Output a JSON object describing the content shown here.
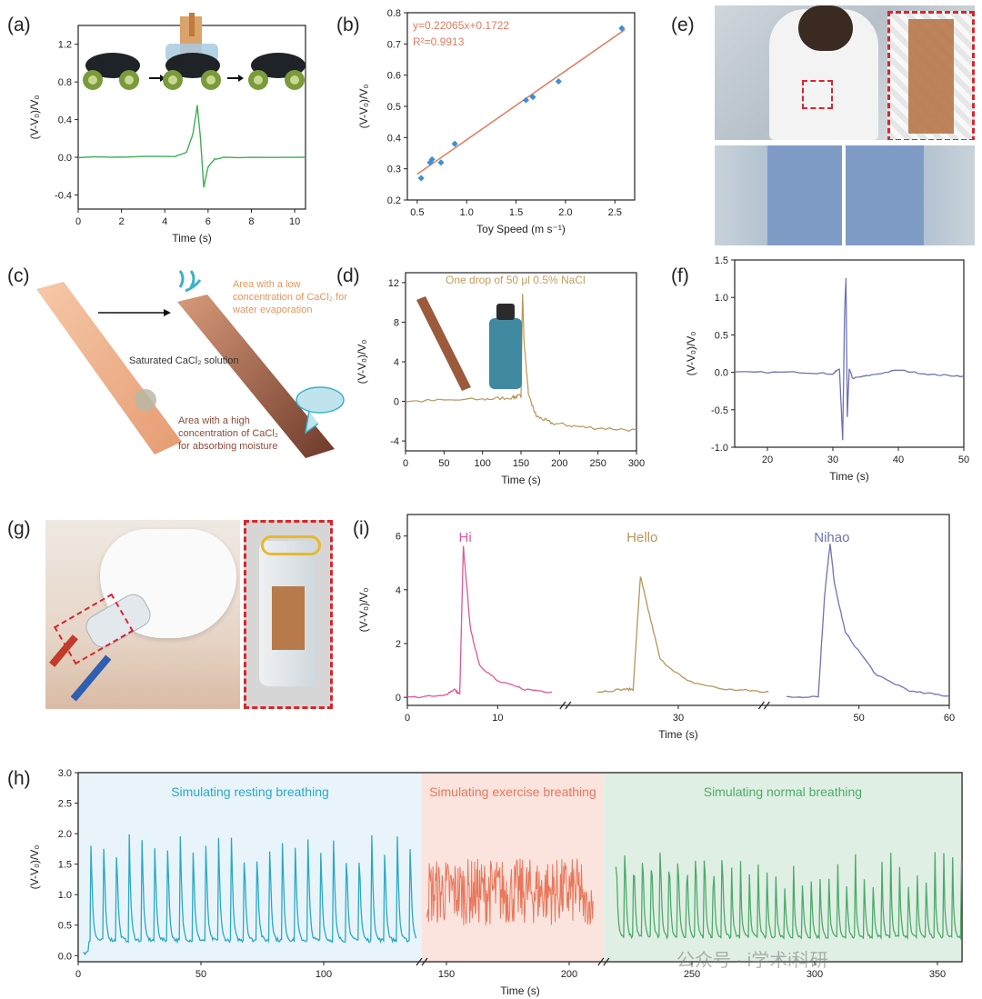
{
  "panels": {
    "a": "(a)",
    "b": "(b)",
    "c": "(c)",
    "d": "(d)",
    "e": "(e)",
    "f": "(f)",
    "g": "(g)",
    "h": "(h)",
    "i": "(i)"
  },
  "diagram_c": {
    "saturated": "Saturated CaCl₂ solution",
    "low_area": "Area with a low concentration of CaCl₂ for water evaporation",
    "high_area": "Area with a high concentration of CaCl₂ for absorbing moisture"
  },
  "watermark": "公众号 · i学术i科研",
  "colors": {
    "green": "#3fae55",
    "orange": "#e07a5f",
    "gold": "#b8955a",
    "purple": "#6f72b8",
    "pink": "#e0569a",
    "cyan": "#2aa9c7",
    "salmon": "#e8785b",
    "breath_green": "#4dab6a"
  },
  "chart_data": [
    {
      "id": "a",
      "type": "line",
      "xlabel": "Time (s)",
      "ylabel": "(V-V₀)/V₀",
      "xlim": [
        0,
        10.5
      ],
      "ylim": [
        -0.55,
        1.4
      ],
      "xticks": [
        0,
        2,
        4,
        6,
        8,
        10
      ],
      "yticks": [
        -0.4,
        0.0,
        0.4,
        0.8,
        1.2
      ],
      "ytick_labels": [
        "-0.4",
        "0.0",
        "0.4",
        "0.8",
        "1.2"
      ],
      "series": [
        {
          "color": "#3fae55",
          "x": [
            0,
            4.5,
            5.0,
            5.3,
            5.5,
            5.65,
            5.8,
            6.0,
            6.3,
            6.8,
            10.5
          ],
          "y": [
            0,
            0.01,
            0.05,
            0.25,
            0.55,
            0.2,
            -0.32,
            -0.1,
            -0.02,
            0,
            0
          ]
        }
      ]
    },
    {
      "id": "b",
      "type": "scatter",
      "xlabel": "Toy Speed (m s⁻¹)",
      "ylabel": "(V-V₀)/V₀",
      "xlim": [
        0.4,
        2.7
      ],
      "ylim": [
        0.2,
        0.8
      ],
      "xticks": [
        0.5,
        1.0,
        1.5,
        2.0,
        2.5
      ],
      "yticks": [
        0.2,
        0.3,
        0.4,
        0.5,
        0.6,
        0.7,
        0.8
      ],
      "xtick_labels": [
        "0.5",
        "1.0",
        "1.5",
        "2.0",
        "2.5"
      ],
      "ytick_labels": [
        "0.2",
        "0.3",
        "0.4",
        "0.5",
        "0.6",
        "0.7",
        "0.8"
      ],
      "x": [
        0.54,
        0.63,
        0.65,
        0.74,
        0.88,
        1.6,
        1.67,
        1.93,
        2.57
      ],
      "y": [
        0.27,
        0.32,
        0.33,
        0.32,
        0.38,
        0.52,
        0.53,
        0.58,
        0.75
      ],
      "fit": {
        "slope": 0.22065,
        "intercept": 0.1722
      },
      "equation": "y=0.22065x+0.1722",
      "r2": "R²=0.9913"
    },
    {
      "id": "d",
      "type": "line",
      "xlabel": "Time (s)",
      "ylabel": "(V-V₀)/V₀",
      "xlim": [
        0,
        300
      ],
      "ylim": [
        -5,
        13
      ],
      "xticks": [
        0,
        50,
        100,
        150,
        200,
        250,
        300
      ],
      "yticks": [
        -4,
        0,
        4,
        8,
        12
      ],
      "annotation": "One drop of 50 μl 0.5% NaCl",
      "series": [
        {
          "color": "#b8955a",
          "x": [
            0,
            100,
            140,
            150,
            152,
            154,
            160,
            170,
            190,
            230,
            300
          ],
          "y": [
            0,
            0.2,
            0.4,
            0.6,
            11,
            6,
            0.5,
            -1.5,
            -2.2,
            -2.6,
            -2.9
          ]
        }
      ]
    },
    {
      "id": "f",
      "type": "line",
      "xlabel": "Time (s)",
      "ylabel": "(V-V₀)/V₀",
      "xlim": [
        15,
        50
      ],
      "ylim": [
        -1.0,
        1.5
      ],
      "xticks": [
        20,
        30,
        40,
        50
      ],
      "yticks": [
        -1.0,
        -0.5,
        0.0,
        0.5,
        1.0,
        1.5
      ],
      "ytick_labels": [
        "-1.0",
        "-0.5",
        "0.0",
        "0.5",
        "1.0",
        "1.5"
      ],
      "series": [
        {
          "color": "#6f72b8",
          "x": [
            15,
            25,
            30,
            31,
            31.5,
            31.8,
            32.0,
            32.2,
            32.5,
            33,
            35,
            40,
            45,
            50
          ],
          "y": [
            0,
            0,
            -0.02,
            0.05,
            -0.9,
            0.85,
            1.25,
            -0.6,
            0.05,
            -0.08,
            -0.05,
            0.03,
            -0.03,
            -0.05
          ]
        }
      ]
    },
    {
      "id": "i",
      "type": "line",
      "xlabel": "Time (s)",
      "ylabel": "(V-V₀)/V₀",
      "xlim": [
        0,
        60
      ],
      "ylim": [
        -0.3,
        6.8
      ],
      "xticks": [
        0,
        10,
        30,
        50,
        60
      ],
      "yticks": [
        0,
        2,
        4,
        6
      ],
      "series": [
        {
          "name": "Hi",
          "color": "#e0569a",
          "x": [
            0,
            4,
            5.2,
            5.8,
            6.2,
            7,
            8,
            10,
            13,
            16
          ],
          "y": [
            0,
            0.05,
            0.3,
            0.1,
            5.6,
            2.5,
            1.2,
            0.6,
            0.3,
            0.2
          ]
        },
        {
          "name": "Hello",
          "color": "#b8955a",
          "x": [
            21,
            24,
            25,
            25.8,
            26.5,
            28,
            31,
            35,
            38,
            40
          ],
          "y": [
            0.2,
            0.3,
            0.3,
            4.5,
            3.5,
            1.4,
            0.6,
            0.3,
            0.25,
            0.2
          ]
        },
        {
          "name": "Nihao",
          "color": "#6f72b8",
          "x": [
            42,
            45.5,
            46.2,
            46.8,
            47.3,
            48.5,
            52,
            56,
            60
          ],
          "y": [
            0,
            0.05,
            3.8,
            5.7,
            4.2,
            2.4,
            0.8,
            0.2,
            0.05
          ]
        }
      ]
    },
    {
      "id": "h",
      "type": "line",
      "xlabel": "Time (s)",
      "ylabel": "(V-V₀)/V₀",
      "xlim": [
        0,
        360
      ],
      "ylim": [
        -0.1,
        3.0
      ],
      "xticks": [
        0,
        50,
        100,
        150,
        200,
        250,
        300,
        350
      ],
      "yticks": [
        0.0,
        0.5,
        1.0,
        1.5,
        2.0,
        2.5,
        3.0
      ],
      "ytick_labels": [
        "0.0",
        "0.5",
        "1.0",
        "1.5",
        "2.0",
        "2.5",
        "3.0"
      ],
      "regions": [
        {
          "label": "Simulating resting breathing",
          "x": [
            0,
            140
          ],
          "color": "#e8f4fa",
          "text_color": "#2aa9c7"
        },
        {
          "label": "Simulating exercise breathing",
          "x": [
            140,
            214
          ],
          "color": "#fbe3de",
          "text_color": "#e8785b"
        },
        {
          "label": "Simulating normal breathing",
          "x": [
            214,
            360
          ],
          "color": "#e0efe4",
          "text_color": "#4dab6a"
        }
      ]
    }
  ]
}
